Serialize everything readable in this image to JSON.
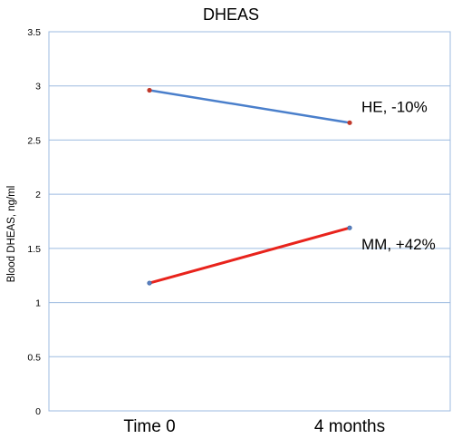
{
  "chart_data": {
    "type": "line",
    "title": "DHEAS",
    "xlabel": "",
    "ylabel": "Blood DHEAS, ng/ml",
    "categories": [
      "Time 0",
      "4 months"
    ],
    "ylim": [
      0,
      3.5
    ],
    "yticks": [
      "0",
      "0.5",
      "1",
      "1.5",
      "2",
      "2.5",
      "3",
      "3.5"
    ],
    "grid": true,
    "series": [
      {
        "values": [
          2.96,
          2.66
        ],
        "color": "#4a7fcb",
        "annotation": "HE, -10%"
      },
      {
        "values": [
          1.18,
          1.69
        ],
        "color": "#e8231c",
        "annotation": "MM, +42%"
      }
    ]
  }
}
